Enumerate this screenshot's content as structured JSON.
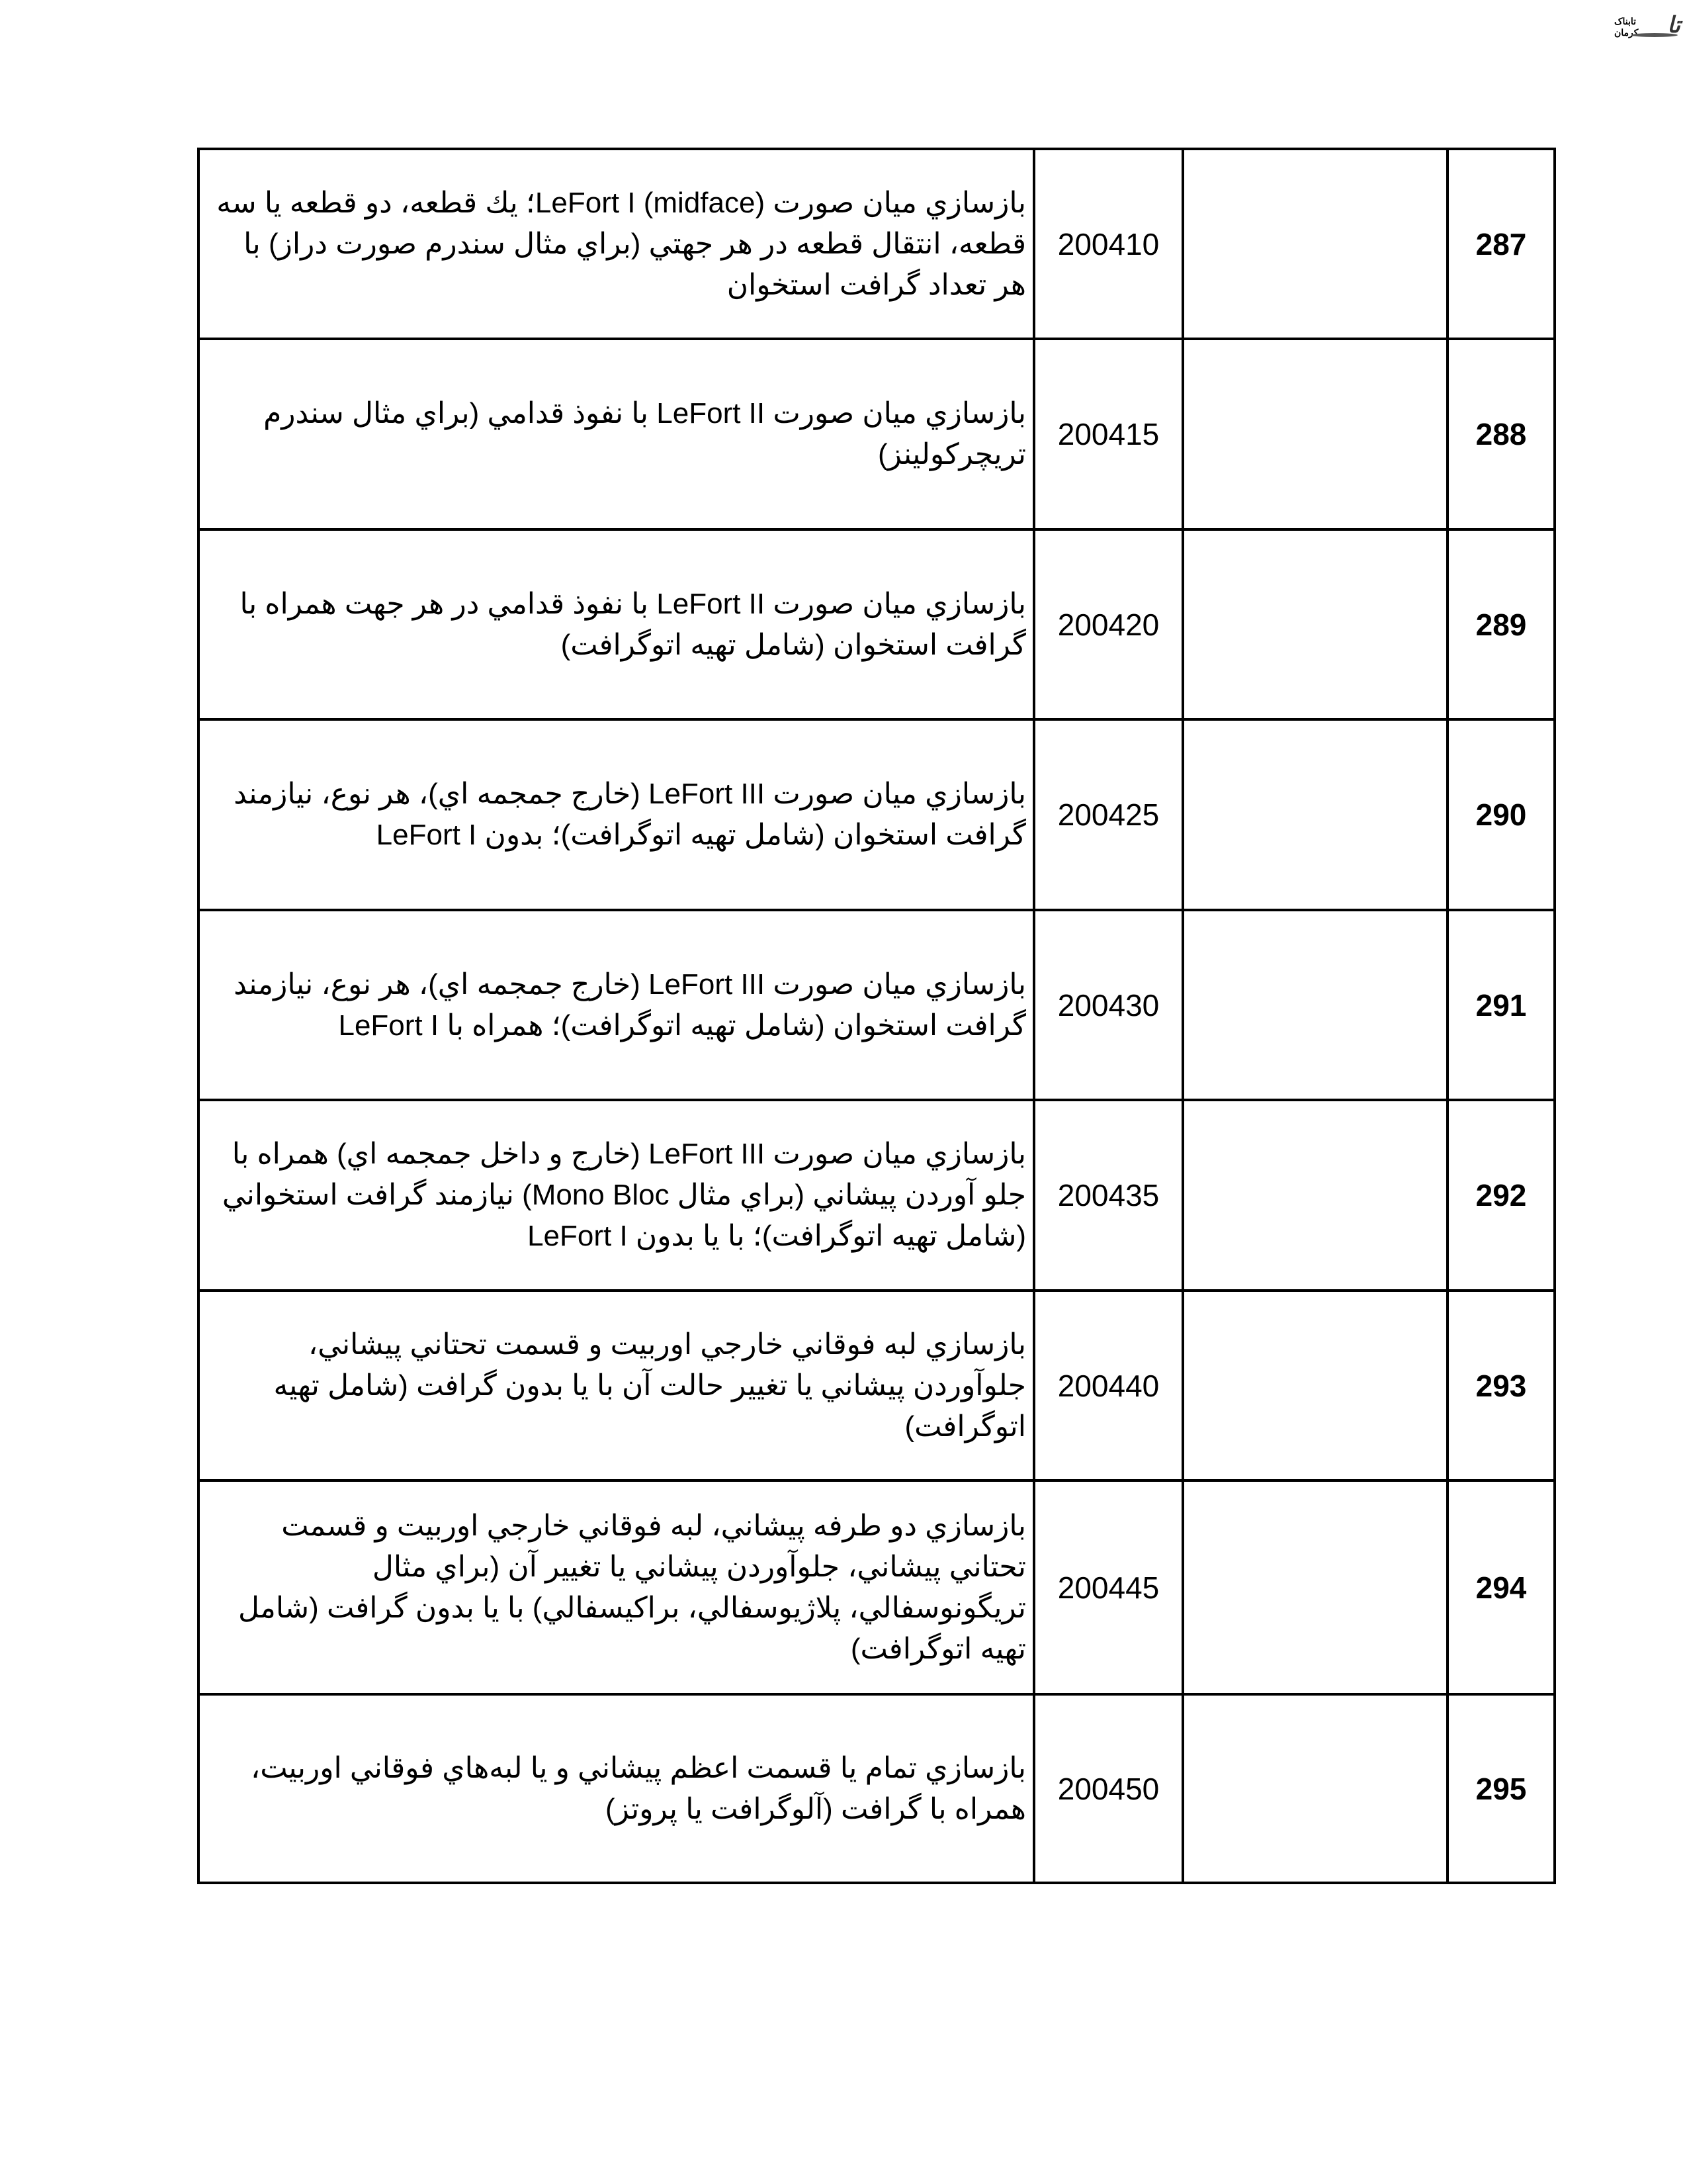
{
  "logo": {
    "text": "تابناک کرمان"
  },
  "rows": [
    {
      "number": "287",
      "code": "200410",
      "description": "بازسازي ميان صورت LeFort I (midface)؛ يك قطعه، دو قطعه يا سه قطعه، انتقال قطعه در هر جهتي (براي مثال سندرم صورت دراز) با هر تعداد گرافت استخوان"
    },
    {
      "number": "288",
      "code": "200415",
      "description": "بازسازي ميان صورت LeFort II با نفوذ قدامي (براي مثال سندرم تريچركولينز)"
    },
    {
      "number": "289",
      "code": "200420",
      "description": "بازسازي ميان صورت LeFort II با نفوذ قدامي در هر جهت همراه با گرافت استخوان (شامل تهيه اتوگرافت)"
    },
    {
      "number": "290",
      "code": "200425",
      "description": "بازسازي ميان صورت LeFort III (خارج جمجمه اي)، هر نوع، نيازمند گرافت استخوان (شامل تهيه اتوگرافت)؛ بدون LeFort I"
    },
    {
      "number": "291",
      "code": "200430",
      "description": "بازسازي ميان صورت LeFort III (خارج جمجمه اي)، هر نوع، نيازمند گرافت استخوان (شامل تهيه اتوگرافت)؛ همراه با LeFort I"
    },
    {
      "number": "292",
      "code": "200435",
      "description": "بازسازي ميان صورت LeFort III (خارج و داخل جمجمه اي) همراه با جلو آوردن پيشاني (براي مثال Mono Bloc) نيازمند گرافت استخواني (شامل تهيه اتوگرافت)؛ با يا بدون LeFort I"
    },
    {
      "number": "293",
      "code": "200440",
      "description": "بازسازي لبه فوقاني خارجي اوربيت و قسمت تحتاني پيشاني، جلوآوردن پيشاني يا تغيير حالت آن با يا بدون گرافت (شامل تهيه اتوگرافت)"
    },
    {
      "number": "294",
      "code": "200445",
      "description": "بازسازي دو طرفه پيشاني، لبه فوقاني خارجي اوربيت و قسمت تحتاني پيشاني، جلوآوردن پيشاني يا تغيير آن (براي مثال تريگونوسفالي، پلاژيوسفالي، براكيسفالي) با يا بدون گرافت (شامل تهيه اتوگرافت)"
    },
    {
      "number": "295",
      "code": "200450",
      "description": "بازسازي تمام يا قسمت اعظم پيشاني و يا لبه‌هاي فوقاني اوربيت، همراه با گرافت (آلوگرافت يا پروتز)"
    }
  ]
}
